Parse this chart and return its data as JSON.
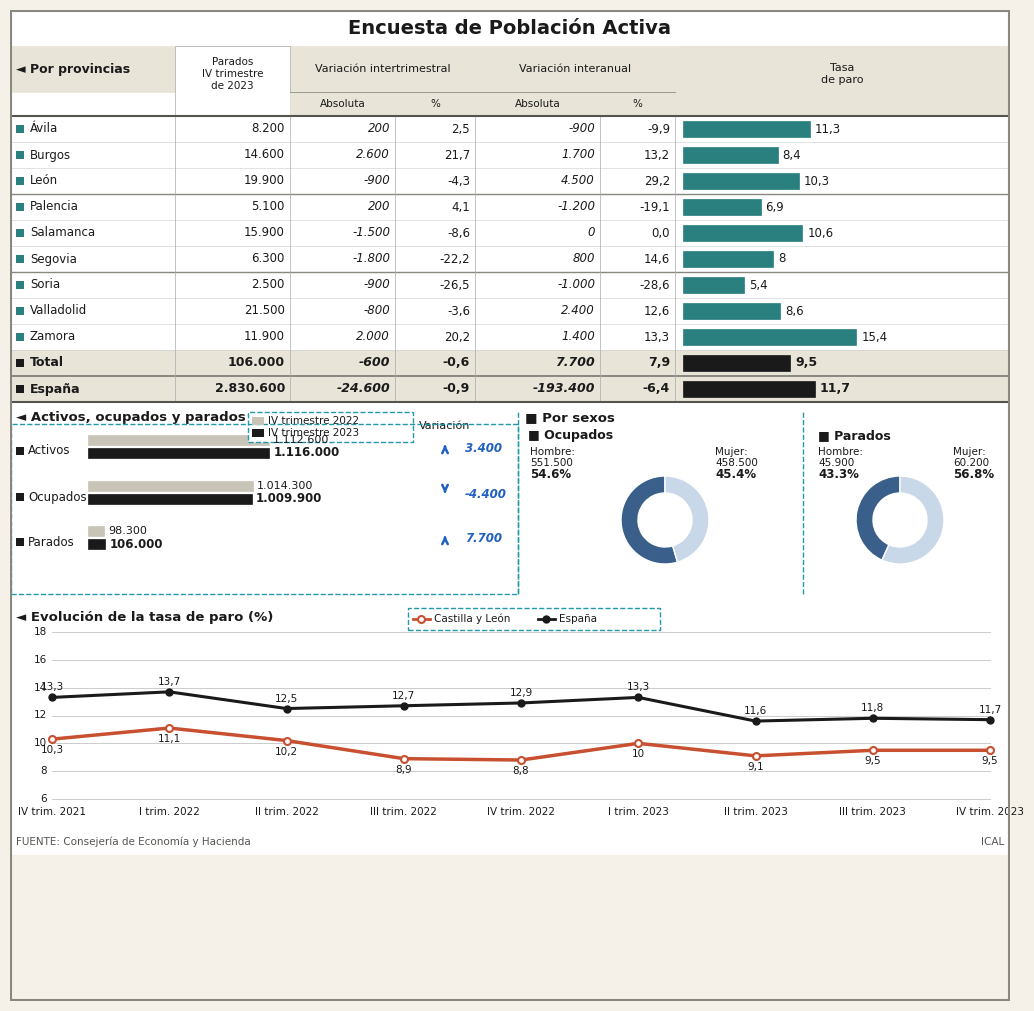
{
  "title": "Encuesta de Población Activa",
  "bg_color": "#f5f0e8",
  "white": "#ffffff",
  "teal": "#2a7f7f",
  "black": "#1a1a1a",
  "light_gray": "#c8c4b8",
  "section_bg": "#e8e4d8",
  "provinces": [
    "Ávila",
    "Burgos",
    "León",
    "Palencia",
    "Salamanca",
    "Segovia",
    "Soria",
    "Valladolid",
    "Zamora"
  ],
  "parados": [
    "8.200",
    "14.600",
    "19.900",
    "5.100",
    "15.900",
    "6.300",
    "2.500",
    "21.500",
    "11.900"
  ],
  "var_abs_intertrim": [
    "200",
    "2.600",
    "-900",
    "200",
    "-1.500",
    "-1.800",
    "-900",
    "-800",
    "2.000"
  ],
  "var_pct_intertrim": [
    "2,5",
    "21,7",
    "-4,3",
    "4,1",
    "-8,6",
    "-22,2",
    "-26,5",
    "-3,6",
    "20,2"
  ],
  "var_abs_interan": [
    "-900",
    "1.700",
    "4.500",
    "-1.200",
    "0",
    "800",
    "-1.000",
    "2.400",
    "1.400"
  ],
  "var_pct_interan": [
    "-9,9",
    "13,2",
    "29,2",
    "-19,1",
    "0,0",
    "14,6",
    "-28,6",
    "12,6",
    "13,3"
  ],
  "tasa_paro": [
    11.3,
    8.4,
    10.3,
    6.9,
    10.6,
    8.0,
    5.4,
    8.6,
    15.4
  ],
  "tasa_paro_str": [
    "11,3",
    "8,4",
    "10,3",
    "6,9",
    "10,6",
    "8",
    "5,4",
    "8,6",
    "15,4"
  ],
  "total_parados": "106.000",
  "total_var_abs_intertrim": "-600",
  "total_var_pct_intertrim": "-0,6",
  "total_var_abs_interan": "7.700",
  "total_var_pct_interan": "7,9",
  "total_tasa": 9.5,
  "total_tasa_str": "9,5",
  "espana_parados": "2.830.600",
  "espana_var_abs_intertrim": "-24.600",
  "espana_var_pct_intertrim": "-0,9",
  "espana_var_abs_interan": "-193.400",
  "espana_var_pct_interan": "-6,4",
  "espana_tasa": 11.7,
  "espana_tasa_str": "11,7",
  "activos_2022": 1112600,
  "activos_2023": 1116000,
  "ocupados_2022": 1014300,
  "ocupados_2023": 1009900,
  "parados_2022": 98300,
  "parados_2023": 106000,
  "var_activos": "3.400",
  "var_ocupados": "-4.400",
  "var_parados_act": "7.700",
  "ocupados_hombre_pct": 54.6,
  "ocupados_mujer_pct": 45.4,
  "ocupados_hombre_val": "551.500",
  "ocupados_mujer_val": "458.500",
  "parados_hombre_pct": 43.3,
  "parados_mujer_pct": 56.8,
  "parados_hombre_val": "45.900",
  "parados_mujer_val": "60.200",
  "line_x": [
    "IV trim. 2021",
    "I trim. 2022",
    "II trim. 2022",
    "III trim. 2022",
    "IV trim. 2022",
    "I trim. 2023",
    "II trim. 2023",
    "III trim. 2023",
    "IV trim. 2023"
  ],
  "castilla_y": [
    10.3,
    11.1,
    10.2,
    8.9,
    8.8,
    10.0,
    9.1,
    9.5,
    9.5
  ],
  "espana_y": [
    13.3,
    13.7,
    12.5,
    12.7,
    12.9,
    13.3,
    11.6,
    11.8,
    11.7
  ],
  "castilla_y_str": [
    "10,3",
    "11,1",
    "10,2",
    "8,9",
    "8,8",
    "10",
    "9,1",
    "9,5",
    "9,5"
  ],
  "espana_y_str": [
    "13,3",
    "13,7",
    "12,5",
    "12,7",
    "12,9",
    "13,3",
    "11,6",
    "11,8",
    "11,7"
  ],
  "source": "FUENTE: Consejería de Economía y Hacienda",
  "ical": "ICAL",
  "donut_dark_blue": "#3a5f8a",
  "donut_light_blue": "#c8d8e8",
  "castilla_line_color": "#c85030",
  "espana_line_color": "#1a1a1a",
  "arrow_up_color": "#2060c0",
  "arrow_down_color": "#2060c0"
}
